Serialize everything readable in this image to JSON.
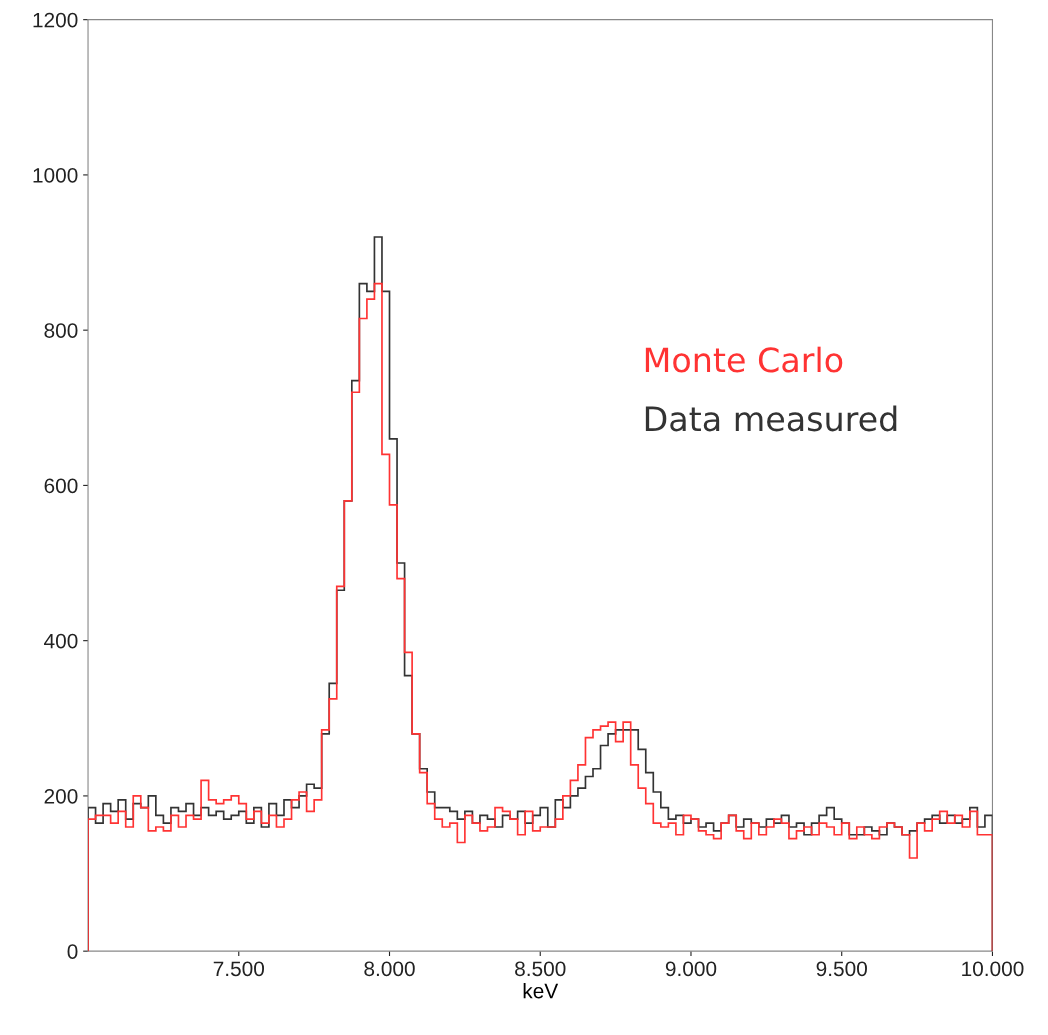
{
  "chart_data": {
    "type": "histogram",
    "xlabel": "keV",
    "bins": [
      7000,
      7025,
      7050,
      7075,
      7100,
      7125,
      7150,
      7175,
      7200,
      7225,
      7250,
      7275,
      7300,
      7325,
      7350,
      7375,
      7400,
      7425,
      7450,
      7475,
      7500,
      7525,
      7550,
      7575,
      7600,
      7625,
      7650,
      7675,
      7700,
      7725,
      7750,
      7775,
      7800,
      7825,
      7850,
      7875,
      7900,
      7925,
      7950,
      7975,
      8000,
      8025,
      8050,
      8075,
      8100,
      8125,
      8150,
      8175,
      8200,
      8225,
      8250,
      8275,
      8300,
      8325,
      8350,
      8375,
      8400,
      8425,
      8450,
      8475,
      8500,
      8525,
      8550,
      8575,
      8600,
      8625,
      8650,
      8675,
      8700,
      8725,
      8750,
      8775,
      8800,
      8825,
      8850,
      8875,
      8900,
      8925,
      8950,
      8975,
      9000,
      9025,
      9050,
      9075,
      9100,
      9125,
      9150,
      9175,
      9200,
      9225,
      9250,
      9275,
      9300,
      9325,
      9350,
      9375,
      9400,
      9425,
      9450,
      9475,
      9500,
      9525,
      9550,
      9575,
      9600,
      9625,
      9650,
      9675,
      9700,
      9725,
      9750,
      9775,
      9800,
      9825,
      9850,
      9875,
      9900,
      9925,
      9950,
      9975,
      10000
    ],
    "series": [
      {
        "name": "Monte Carlo",
        "color": "#ff3333",
        "values": [
          170,
          175,
          175,
          165,
          180,
          160,
          200,
          185,
          155,
          160,
          155,
          175,
          160,
          175,
          170,
          220,
          195,
          190,
          195,
          200,
          190,
          170,
          180,
          165,
          175,
          160,
          170,
          195,
          205,
          180,
          195,
          285,
          325,
          470,
          580,
          720,
          815,
          840,
          860,
          640,
          575,
          480,
          385,
          280,
          230,
          190,
          170,
          160,
          165,
          140,
          175,
          165,
          155,
          160,
          185,
          180,
          170,
          150,
          180,
          155,
          160,
          160,
          170,
          200,
          220,
          240,
          275,
          285,
          290,
          295,
          270,
          295,
          240,
          210,
          190,
          165,
          160,
          165,
          150,
          175,
          170,
          155,
          150,
          145,
          165,
          175,
          155,
          145,
          165,
          150,
          160,
          170,
          165,
          145,
          155,
          160,
          150,
          165,
          160,
          150,
          165,
          145,
          160,
          150,
          145,
          160,
          165,
          160,
          150,
          120,
          165,
          155,
          170,
          180,
          165,
          175,
          160,
          180,
          150,
          150
        ]
      },
      {
        "name": "Data measured",
        "color": "#333333",
        "values": [
          185,
          165,
          190,
          180,
          195,
          170,
          190,
          185,
          200,
          175,
          165,
          185,
          180,
          190,
          175,
          185,
          175,
          180,
          170,
          175,
          180,
          165,
          185,
          160,
          190,
          175,
          195,
          185,
          200,
          215,
          210,
          280,
          345,
          465,
          580,
          735,
          860,
          850,
          920,
          850,
          660,
          500,
          355,
          280,
          235,
          205,
          185,
          185,
          180,
          170,
          180,
          165,
          175,
          170,
          160,
          175,
          170,
          180,
          165,
          175,
          185,
          160,
          195,
          185,
          200,
          210,
          225,
          235,
          265,
          280,
          285,
          285,
          285,
          260,
          230,
          205,
          185,
          170,
          175,
          165,
          170,
          160,
          165,
          155,
          165,
          175,
          160,
          170,
          165,
          160,
          170,
          165,
          175,
          160,
          165,
          150,
          165,
          175,
          185,
          170,
          165,
          150,
          150,
          160,
          155,
          150,
          165,
          160,
          150,
          155,
          165,
          170,
          175,
          165,
          175,
          165,
          170,
          185,
          160,
          175
        ]
      }
    ],
    "xlim": [
      7000,
      10000
    ],
    "xticks": [
      {
        "value": 7500,
        "label": "7.500"
      },
      {
        "value": 8000,
        "label": "8.000"
      },
      {
        "value": 8500,
        "label": "8.500"
      },
      {
        "value": 9000,
        "label": "9.000"
      },
      {
        "value": 9500,
        "label": "9.500"
      },
      {
        "value": 10000,
        "label": "10.000"
      }
    ],
    "ylim": [
      0,
      1200
    ],
    "yticks": [
      0,
      200,
      400,
      600,
      800,
      1000,
      1200
    ],
    "legend": "right",
    "grid": false
  }
}
